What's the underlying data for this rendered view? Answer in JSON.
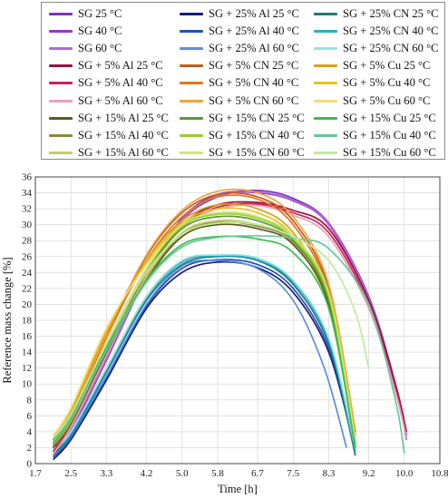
{
  "chart_data": {
    "type": "line",
    "xlabel": "Time [h]",
    "ylabel": "Reference mass change [%]",
    "xlim": [
      1.7,
      10.8
    ],
    "ylim": [
      0,
      36
    ],
    "x_ticks": [
      1.7,
      2.5,
      3.3,
      4.2,
      5.0,
      5.8,
      6.7,
      7.5,
      8.3,
      9.2,
      10.0,
      10.8
    ],
    "x_tick_labels": [
      "1.7",
      "2.5",
      "3.3",
      "4.2",
      "5.0",
      "5.8",
      "6.7",
      "7.5",
      "8.3",
      "9.2",
      "10.0",
      "10.8"
    ],
    "y_ticks": [
      0,
      2,
      4,
      6,
      8,
      10,
      12,
      14,
      16,
      18,
      20,
      22,
      24,
      26,
      28,
      30,
      32,
      34,
      36
    ],
    "grid": true,
    "legend_position": "top, outside",
    "series": [
      {
        "name": "SG 25 °C",
        "color": "#7b2fbf",
        "x": [
          2.1,
          2.5,
          3.3,
          4.2,
          5.0,
          5.8,
          6.7,
          7.5,
          8.3,
          9.2,
          9.8,
          10.05
        ],
        "y": [
          1.0,
          4.0,
          13.0,
          23.5,
          30.5,
          33.5,
          34.3,
          33.3,
          30.2,
          21.0,
          10.0,
          3.5
        ]
      },
      {
        "name": "SG 40 °C",
        "color": "#9838c8",
        "x": [
          2.1,
          2.5,
          3.3,
          4.2,
          5.0,
          5.8,
          6.7,
          7.5,
          8.3,
          9.2,
          9.8,
          10.05
        ],
        "y": [
          1.8,
          4.5,
          13.5,
          23.8,
          30.8,
          33.8,
          34.0,
          33.0,
          30.0,
          20.5,
          9.5,
          3.0
        ]
      },
      {
        "name": "SG 60 °C",
        "color": "#b069d8",
        "x": [
          2.1,
          2.5,
          3.3,
          4.2,
          5.0,
          5.8,
          6.7,
          7.5,
          8.3,
          9.2,
          9.8,
          10.05
        ],
        "y": [
          1.2,
          4.2,
          13.2,
          23.6,
          30.6,
          33.6,
          34.1,
          33.1,
          30.1,
          20.8,
          9.8,
          3.2
        ]
      },
      {
        "name": "SG + 25% Al 25 °C",
        "color": "#151a80",
        "x": [
          2.1,
          2.5,
          3.3,
          4.2,
          5.0,
          5.8,
          6.7,
          7.5,
          8.3,
          8.9
        ],
        "y": [
          0.5,
          3.0,
          10.5,
          19.5,
          24.0,
          25.3,
          24.6,
          21.5,
          14.0,
          1.5
        ]
      },
      {
        "name": "SG + 25% Al 40 °C",
        "color": "#2451b8",
        "x": [
          2.1,
          2.5,
          3.3,
          4.2,
          5.0,
          5.8,
          6.7,
          7.5,
          8.3,
          8.9
        ],
        "y": [
          0.8,
          3.2,
          10.8,
          19.8,
          24.5,
          25.6,
          25.0,
          22.0,
          14.5,
          2.0
        ]
      },
      {
        "name": "SG + 25% Al 60 °C",
        "color": "#5b8fdf",
        "x": [
          2.1,
          2.5,
          3.3,
          4.2,
          5.0,
          5.8,
          6.7,
          7.5,
          8.2,
          8.7
        ],
        "y": [
          1.0,
          3.5,
          11.0,
          20.0,
          24.8,
          25.5,
          24.5,
          20.5,
          12.0,
          2.0
        ]
      },
      {
        "name": "SG + 25% CN 25 °C",
        "color": "#1c7a78",
        "x": [
          2.1,
          2.5,
          3.3,
          4.2,
          5.0,
          5.8,
          6.7,
          7.5,
          8.3,
          8.9
        ],
        "y": [
          1.2,
          3.6,
          11.5,
          20.5,
          25.0,
          26.0,
          25.5,
          22.5,
          15.0,
          1.0
        ]
      },
      {
        "name": "SG + 25% CN 40 °C",
        "color": "#27b0c3",
        "x": [
          2.1,
          2.5,
          3.3,
          4.2,
          5.0,
          5.8,
          6.7,
          7.5,
          8.3,
          8.9
        ],
        "y": [
          1.5,
          3.8,
          11.8,
          20.8,
          25.3,
          26.1,
          25.6,
          22.8,
          15.5,
          1.5
        ]
      },
      {
        "name": "SG + 25% CN 60 °C",
        "color": "#9fdde6",
        "x": [
          2.1,
          2.5,
          3.3,
          4.2,
          5.0,
          5.8,
          6.7,
          7.5,
          8.3,
          8.9
        ],
        "y": [
          1.8,
          4.0,
          12.0,
          21.0,
          25.5,
          26.2,
          25.8,
          23.0,
          15.8,
          2.0
        ]
      },
      {
        "name": "SG + 5% Al 25 °C",
        "color": "#9b1040",
        "x": [
          2.1,
          2.5,
          3.3,
          4.2,
          5.0,
          5.8,
          6.7,
          7.5,
          8.3,
          9.2,
          9.8,
          10.05
        ],
        "y": [
          2.0,
          5.0,
          14.0,
          24.0,
          30.0,
          32.5,
          32.8,
          31.8,
          29.5,
          20.5,
          10.0,
          4.0
        ]
      },
      {
        "name": "SG + 5% Al 40 °C",
        "color": "#cc2157",
        "x": [
          2.1,
          2.5,
          3.3,
          4.2,
          5.0,
          5.8,
          6.7,
          7.5,
          8.3,
          9.2,
          9.8,
          10.05
        ],
        "y": [
          1.5,
          4.8,
          13.8,
          23.8,
          29.8,
          32.2,
          32.6,
          31.5,
          29.0,
          20.0,
          9.5,
          3.5
        ]
      },
      {
        "name": "SG + 5% Al 60 °C",
        "color": "#eba1b8",
        "x": [
          2.1,
          2.5,
          3.3,
          4.2,
          5.0,
          5.8,
          6.7,
          7.5,
          8.3,
          9.2,
          9.8,
          10.05
        ],
        "y": [
          1.2,
          4.6,
          13.6,
          23.6,
          29.6,
          32.0,
          32.4,
          31.2,
          28.5,
          19.5,
          9.0,
          3.2
        ]
      },
      {
        "name": "SG + 5% CN 25 °C",
        "color": "#c85a1a",
        "x": [
          2.1,
          2.5,
          3.3,
          4.2,
          5.0,
          5.8,
          6.7,
          7.5,
          8.3,
          8.9
        ],
        "y": [
          2.5,
          6.0,
          16.0,
          26.0,
          31.5,
          33.8,
          33.5,
          30.5,
          22.0,
          4.0
        ]
      },
      {
        "name": "SG + 5% CN 40 °C",
        "color": "#e5761e",
        "x": [
          2.1,
          2.5,
          3.3,
          4.2,
          5.0,
          5.8,
          6.7,
          7.5,
          8.3,
          8.9
        ],
        "y": [
          2.2,
          5.8,
          15.8,
          25.5,
          31.0,
          33.5,
          33.2,
          30.0,
          21.5,
          3.5
        ]
      },
      {
        "name": "SG + 5% CN 60 °C",
        "color": "#f1a23c",
        "x": [
          2.1,
          2.5,
          3.3,
          4.2,
          5.0,
          5.8,
          6.7,
          7.5,
          8.3,
          8.9
        ],
        "y": [
          2.8,
          6.2,
          16.2,
          26.2,
          31.8,
          34.2,
          34.0,
          31.0,
          22.5,
          4.2
        ]
      },
      {
        "name": "SG + 5% Cu 25 °C",
        "color": "#d8a21c",
        "x": [
          2.1,
          2.5,
          3.3,
          4.2,
          5.0,
          5.8,
          6.7,
          7.5,
          8.3,
          8.9
        ],
        "y": [
          3.0,
          6.5,
          16.5,
          25.5,
          30.5,
          32.5,
          32.0,
          29.0,
          20.5,
          3.0
        ]
      },
      {
        "name": "SG + 5% Cu 40 °C",
        "color": "#e9c21c",
        "x": [
          2.1,
          2.5,
          3.3,
          4.2,
          5.0,
          5.8,
          6.7,
          7.5,
          8.3,
          8.9
        ],
        "y": [
          3.2,
          6.8,
          16.8,
          25.2,
          30.2,
          32.0,
          31.5,
          28.5,
          20.0,
          2.5
        ]
      },
      {
        "name": "SG + 5% Cu 60 °C",
        "color": "#f3dc7a",
        "x": [
          2.1,
          2.5,
          3.3,
          4.2,
          5.0,
          5.8,
          6.7,
          7.5,
          8.3,
          8.9
        ],
        "y": [
          3.5,
          7.0,
          17.0,
          25.0,
          29.8,
          31.5,
          31.0,
          28.0,
          19.5,
          2.0
        ]
      },
      {
        "name": "SG + 15% Al 25 °C",
        "color": "#5c5a1c",
        "x": [
          2.1,
          2.5,
          3.3,
          4.2,
          5.0,
          5.8,
          6.7,
          7.5,
          8.3,
          8.9
        ],
        "y": [
          2.0,
          5.0,
          14.0,
          23.0,
          28.5,
          30.0,
          29.5,
          27.5,
          20.0,
          2.0
        ]
      },
      {
        "name": "SG + 15% Al 40 °C",
        "color": "#8c893e",
        "x": [
          2.1,
          2.5,
          3.3,
          4.2,
          5.0,
          5.8,
          6.7,
          7.5,
          8.3,
          8.9
        ],
        "y": [
          2.2,
          5.2,
          14.2,
          23.3,
          28.8,
          30.3,
          29.8,
          27.8,
          20.5,
          2.5
        ]
      },
      {
        "name": "SG + 15% Al 60 °C",
        "color": "#c9c96a",
        "x": [
          2.1,
          2.5,
          3.3,
          4.2,
          5.0,
          5.8,
          6.7,
          7.5,
          8.3,
          8.9
        ],
        "y": [
          2.4,
          5.4,
          14.4,
          23.5,
          29.0,
          30.5,
          30.0,
          28.0,
          21.0,
          3.0
        ]
      },
      {
        "name": "SG + 15% CN 25 °C",
        "color": "#579c2e",
        "x": [
          2.1,
          2.5,
          3.3,
          4.2,
          5.0,
          5.8,
          6.7,
          7.5,
          8.3,
          8.9
        ],
        "y": [
          2.5,
          5.6,
          14.8,
          24.0,
          29.5,
          31.0,
          30.5,
          28.0,
          20.5,
          2.0
        ]
      },
      {
        "name": "SG + 15% CN 40 °C",
        "color": "#9ccd2c",
        "x": [
          2.1,
          2.5,
          3.3,
          4.2,
          5.0,
          5.8,
          6.7,
          7.5,
          8.3,
          8.9
        ],
        "y": [
          2.7,
          5.8,
          15.0,
          24.3,
          29.8,
          31.3,
          30.8,
          28.3,
          21.0,
          2.5
        ]
      },
      {
        "name": "SG + 15% CN 60 °C",
        "color": "#cbe67a",
        "x": [
          2.1,
          2.5,
          3.3,
          4.2,
          5.0,
          5.8,
          6.7,
          7.5,
          8.3,
          8.9
        ],
        "y": [
          2.9,
          6.0,
          15.2,
          24.5,
          30.0,
          31.5,
          31.0,
          28.5,
          21.5,
          3.0
        ]
      },
      {
        "name": "SG + 15% Cu 25 °C",
        "color": "#36bf4f",
        "x": [
          2.1,
          2.5,
          3.3,
          4.2,
          5.0,
          5.8,
          6.7,
          7.5,
          8.3,
          8.9
        ],
        "y": [
          3.0,
          6.0,
          14.5,
          23.0,
          27.5,
          28.5,
          28.2,
          26.5,
          19.5,
          2.0
        ]
      },
      {
        "name": "SG + 15% Cu 40 °C",
        "color": "#67c79a",
        "x": [
          2.1,
          2.5,
          3.3,
          4.2,
          5.0,
          5.8,
          6.7,
          7.5,
          8.3,
          9.2,
          9.8,
          10.0
        ],
        "y": [
          2.8,
          5.8,
          14.2,
          22.8,
          27.2,
          28.4,
          28.6,
          28.3,
          27.0,
          20.0,
          8.0,
          1.3
        ]
      },
      {
        "name": "SG + 15% Cu 60 °C",
        "color": "#bdec9c",
        "x": [
          2.1,
          2.5,
          3.3,
          4.2,
          5.0,
          5.8,
          6.7,
          7.5,
          8.3,
          8.9,
          9.2
        ],
        "y": [
          3.2,
          6.2,
          15.0,
          24.0,
          28.8,
          30.2,
          30.0,
          28.5,
          25.5,
          19.0,
          12.0
        ]
      }
    ]
  }
}
